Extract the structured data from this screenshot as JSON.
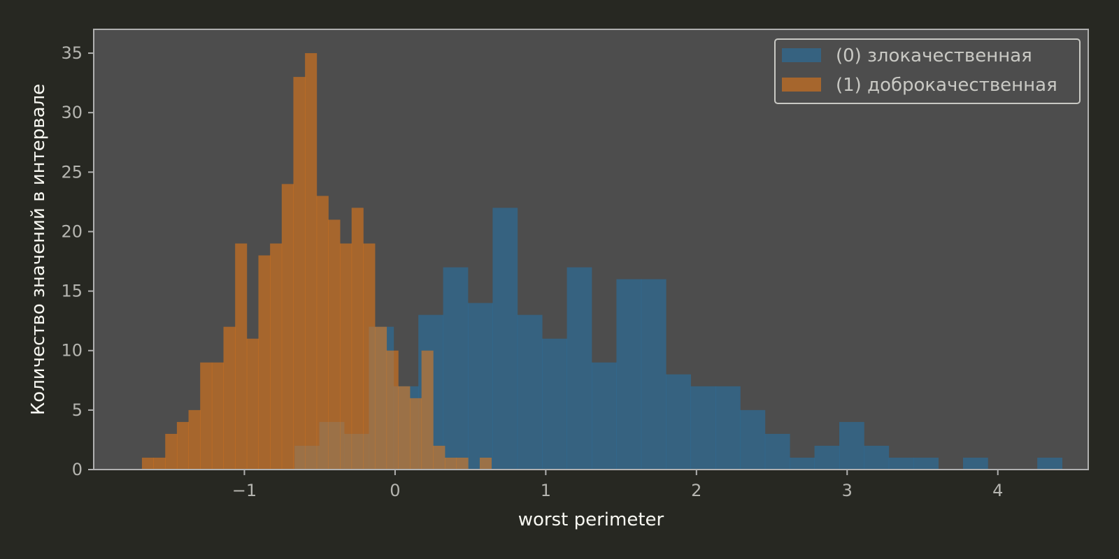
{
  "chart_data": {
    "type": "histogram",
    "xlabel": "worst perimeter",
    "ylabel": "Количество значений в интервале",
    "xlim": [
      -2.0,
      4.6
    ],
    "ylim": [
      0,
      37
    ],
    "x_ticks": [
      -1,
      0,
      1,
      2,
      3,
      4
    ],
    "x_tick_labels": [
      "−1",
      "0",
      "1",
      "2",
      "3",
      "4"
    ],
    "y_ticks": [
      0,
      5,
      10,
      15,
      20,
      25,
      30,
      35
    ],
    "y_tick_labels": [
      "0",
      "5",
      "10",
      "15",
      "20",
      "25",
      "30",
      "35"
    ],
    "grid": false,
    "legend_position": "top-right",
    "colors": {
      "background": "#272822",
      "plot_background": "#4d4d4d",
      "axis": "#b0b0b0"
    },
    "series": [
      {
        "name": "(0) злокачественная",
        "color": "#1f77b4",
        "opacity": 0.5,
        "bin_start": -0.667,
        "bin_width": 0.1643,
        "values": [
          2,
          4,
          3,
          12,
          7,
          13,
          17,
          14,
          22,
          13,
          11,
          17,
          9,
          16,
          16,
          8,
          7,
          7,
          5,
          3,
          1,
          2,
          4,
          2,
          1,
          1,
          0,
          1,
          0,
          0,
          1
        ]
      },
      {
        "name": "(1) доброкачественная",
        "color": "#ff7f0e",
        "opacity": 0.5,
        "bin_start": -1.68,
        "bin_width": 0.0773,
        "values": [
          1,
          1,
          3,
          4,
          5,
          9,
          9,
          12,
          19,
          11,
          18,
          19,
          24,
          33,
          35,
          23,
          21,
          19,
          22,
          19,
          12,
          10,
          7,
          6,
          10,
          2,
          1,
          1,
          0,
          1
        ]
      }
    ]
  }
}
